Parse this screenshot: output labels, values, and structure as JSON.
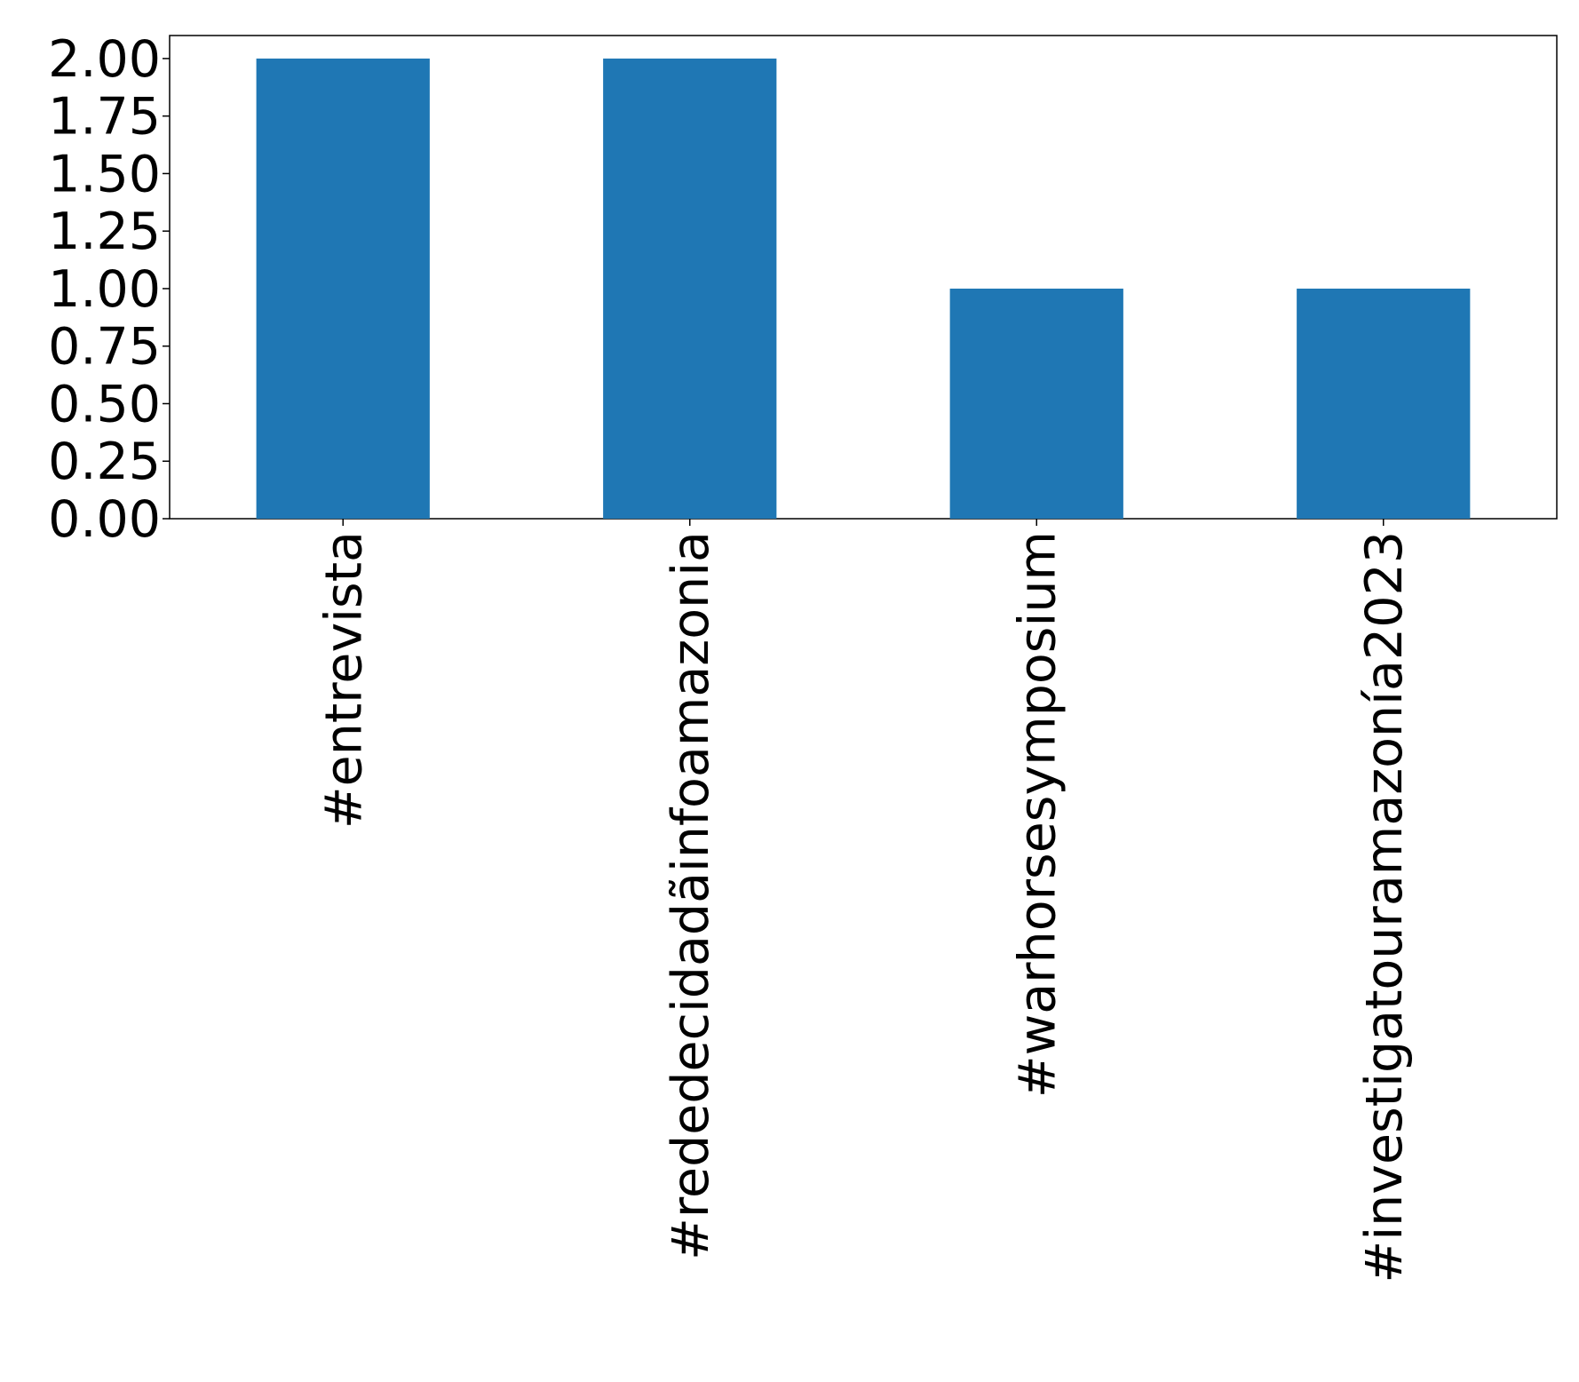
{
  "chart_data": {
    "type": "bar",
    "categories": [
      "#entrevista",
      "#rededecidadãinfoamazonia",
      "#warhorsesymposium",
      "#investigatouramazonía2023"
    ],
    "values": [
      2,
      2,
      1,
      1
    ],
    "color": "#1f77b4",
    "ylim": [
      0,
      2.1
    ],
    "yticks": [
      {
        "value": 0,
        "label": "0.00"
      },
      {
        "value": 0.25,
        "label": "0.25"
      },
      {
        "value": 0.5,
        "label": "0.50"
      },
      {
        "value": 0.75,
        "label": "0.75"
      },
      {
        "value": 1,
        "label": "1.00"
      },
      {
        "value": 1.25,
        "label": "1.25"
      },
      {
        "value": 1.5,
        "label": "1.50"
      },
      {
        "value": 1.75,
        "label": "1.75"
      },
      {
        "value": 2,
        "label": "2.00"
      }
    ],
    "grid": false
  }
}
